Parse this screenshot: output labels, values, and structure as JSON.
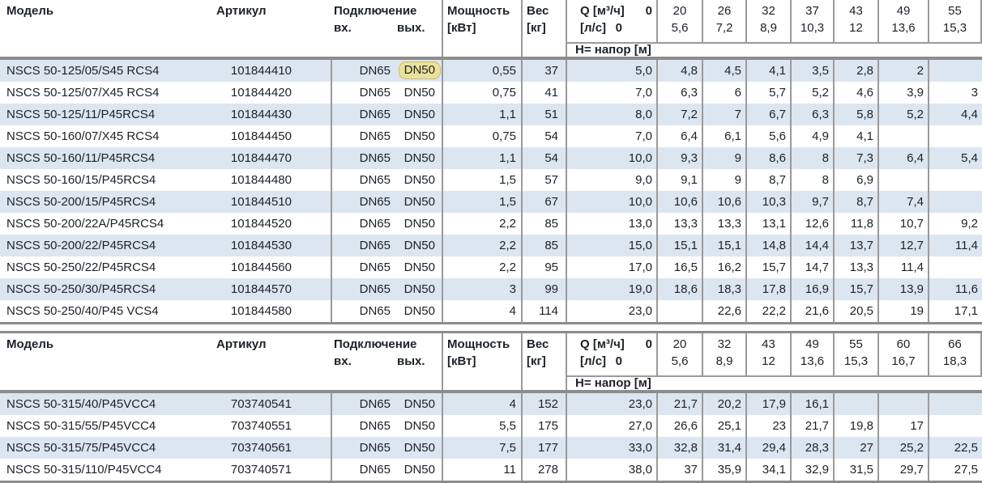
{
  "labels": {
    "model": "Модель",
    "article": "Артикул",
    "connection": "Подключение",
    "conn_in": "вх.",
    "conn_out": "вых.",
    "power_1": "Мощность",
    "power_2": "[кВт]",
    "weight_1": "Вес",
    "weight_2": "[кг]",
    "q_flow": "Q [м³/ч]",
    "q_zero": "0",
    "ls": "[л/с]",
    "ls_zero": "0",
    "head_row": "H= напор [м]"
  },
  "colors": {
    "row_alt_blue": "#dce6f1",
    "divider_gray": "#9a9a9a",
    "separator_gray": "#8c8c8c",
    "highlight_yellow_bg": "#ebe29a",
    "highlight_yellow_border": "#cdbc70"
  },
  "tables": [
    {
      "flows_m3h": [
        "20",
        "26",
        "32",
        "37",
        "43",
        "49",
        "55"
      ],
      "flows_ls": [
        "5,6",
        "7,2",
        "8,9",
        "10,3",
        "12",
        "13,6",
        "15,3"
      ],
      "rows": [
        {
          "model": "NSCS 50-125/05/S45 RCS4",
          "article": "101844410",
          "in": "DN65",
          "out": "DN50",
          "out_highlight": true,
          "power": "0,55",
          "weight": "37",
          "h": [
            "5,0",
            "4,8",
            "4,5",
            "4,1",
            "3,5",
            "2,8",
            "2",
            ""
          ]
        },
        {
          "model": "NSCS 50-125/07/X45 RCS4",
          "article": "101844420",
          "in": "DN65",
          "out": "DN50",
          "out_highlight": false,
          "power": "0,75",
          "weight": "41",
          "h": [
            "7,0",
            "6,3",
            "6",
            "5,7",
            "5,2",
            "4,6",
            "3,9",
            "3"
          ]
        },
        {
          "model": "NSCS 50-125/11/P45RCS4",
          "article": "101844430",
          "in": "DN65",
          "out": "DN50",
          "out_highlight": false,
          "power": "1,1",
          "weight": "51",
          "h": [
            "8,0",
            "7,2",
            "7",
            "6,7",
            "6,3",
            "5,8",
            "5,2",
            "4,4"
          ]
        },
        {
          "model": "NSCS 50-160/07/X45 RCS4",
          "article": "101844450",
          "in": "DN65",
          "out": "DN50",
          "out_highlight": false,
          "power": "0,75",
          "weight": "54",
          "h": [
            "7,0",
            "6,4",
            "6,1",
            "5,6",
            "4,9",
            "4,1",
            "",
            ""
          ]
        },
        {
          "model": "NSCS 50-160/11/P45RCS4",
          "article": "101844470",
          "in": "DN65",
          "out": "DN50",
          "out_highlight": false,
          "power": "1,1",
          "weight": "54",
          "h": [
            "10,0",
            "9,3",
            "9",
            "8,6",
            "8",
            "7,3",
            "6,4",
            "5,4"
          ]
        },
        {
          "model": "NSCS 50-160/15/P45RCS4",
          "article": "101844480",
          "in": "DN65",
          "out": "DN50",
          "out_highlight": false,
          "power": "1,5",
          "weight": "57",
          "h": [
            "9,0",
            "9,1",
            "9",
            "8,7",
            "8",
            "6,9",
            "",
            ""
          ]
        },
        {
          "model": "NSCS 50-200/15/P45RCS4",
          "article": "101844510",
          "in": "DN65",
          "out": "DN50",
          "out_highlight": false,
          "power": "1,5",
          "weight": "67",
          "h": [
            "10,0",
            "10,6",
            "10,6",
            "10,3",
            "9,7",
            "8,7",
            "7,4",
            ""
          ]
        },
        {
          "model": "NSCS 50-200/22A/P45RCS4",
          "article": "101844520",
          "in": "DN65",
          "out": "DN50",
          "out_highlight": false,
          "power": "2,2",
          "weight": "85",
          "h": [
            "13,0",
            "13,3",
            "13,3",
            "13,1",
            "12,6",
            "11,8",
            "10,7",
            "9,2"
          ]
        },
        {
          "model": "NSCS 50-200/22/P45RCS4",
          "article": "101844530",
          "in": "DN65",
          "out": "DN50",
          "out_highlight": false,
          "power": "2,2",
          "weight": "85",
          "h": [
            "15,0",
            "15,1",
            "15,1",
            "14,8",
            "14,4",
            "13,7",
            "12,7",
            "11,4"
          ]
        },
        {
          "model": "NSCS 50-250/22/P45RCS4",
          "article": "101844560",
          "in": "DN65",
          "out": "DN50",
          "out_highlight": false,
          "power": "2,2",
          "weight": "95",
          "h": [
            "17,0",
            "16,5",
            "16,2",
            "15,7",
            "14,7",
            "13,3",
            "11,4",
            ""
          ]
        },
        {
          "model": "NSCS 50-250/30/P45RCS4",
          "article": "101844570",
          "in": "DN65",
          "out": "DN50",
          "out_highlight": false,
          "power": "3",
          "weight": "99",
          "h": [
            "19,0",
            "18,6",
            "18,3",
            "17,8",
            "16,9",
            "15,7",
            "13,9",
            "11,6"
          ]
        },
        {
          "model": "NSCS 50-250/40/P45 VCS4",
          "article": "101844580",
          "in": "DN65",
          "out": "DN50",
          "out_highlight": false,
          "power": "4",
          "weight": "114",
          "h": [
            "23,0",
            "",
            "22,6",
            "22,2",
            "21,6",
            "20,5",
            "19",
            "17,1"
          ]
        }
      ]
    },
    {
      "flows_m3h": [
        "20",
        "32",
        "43",
        "49",
        "55",
        "60",
        "66"
      ],
      "flows_ls": [
        "5,6",
        "8,9",
        "12",
        "13,6",
        "15,3",
        "16,7",
        "18,3"
      ],
      "rows": [
        {
          "model": "NSCS 50-315/40/P45VCC4",
          "article": "703740541",
          "in": "DN65",
          "out": "DN50",
          "out_highlight": false,
          "power": "4",
          "weight": "152",
          "h": [
            "23,0",
            "21,7",
            "20,2",
            "17,9",
            "16,1",
            "",
            "",
            ""
          ]
        },
        {
          "model": "NSCS 50-315/55/P45VCC4",
          "article": "703740551",
          "in": "DN65",
          "out": "DN50",
          "out_highlight": false,
          "power": "5,5",
          "weight": "175",
          "h": [
            "27,0",
            "26,6",
            "25,1",
            "23",
            "21,7",
            "19,8",
            "17",
            ""
          ]
        },
        {
          "model": "NSCS 50-315/75/P45VCC4",
          "article": "703740561",
          "in": "DN65",
          "out": "DN50",
          "out_highlight": false,
          "power": "7,5",
          "weight": "177",
          "h": [
            "33,0",
            "32,8",
            "31,4",
            "29,4",
            "28,3",
            "27",
            "25,2",
            "22,5"
          ]
        },
        {
          "model": "NSCS 50-315/110/P45VCC4",
          "article": "703740571",
          "in": "DN65",
          "out": "DN50",
          "out_highlight": false,
          "power": "11",
          "weight": "278",
          "h": [
            "38,0",
            "37",
            "35,9",
            "34,1",
            "32,9",
            "31,5",
            "29,7",
            "27,5"
          ]
        }
      ]
    }
  ]
}
